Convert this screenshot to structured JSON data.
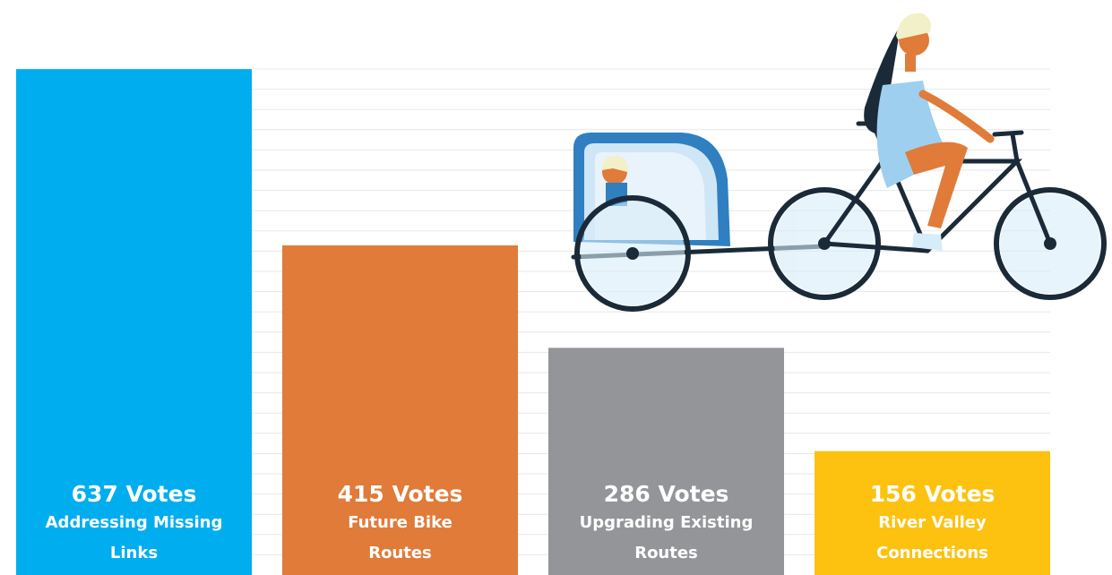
{
  "chart_data": {
    "type": "bar",
    "categories": [
      "Addressing Missing Links",
      "Future Bike Routes",
      "Upgrading Existing Routes",
      "River Valley Connections"
    ],
    "values": [
      637,
      415,
      286,
      156
    ],
    "value_labels": [
      "637 Votes",
      "415 Votes",
      "286 Votes",
      "156 Votes"
    ],
    "colors": [
      "#00aeef",
      "#e07b39",
      "#939598",
      "#fdc20f"
    ],
    "ylim": [
      0,
      724
    ]
  }
}
